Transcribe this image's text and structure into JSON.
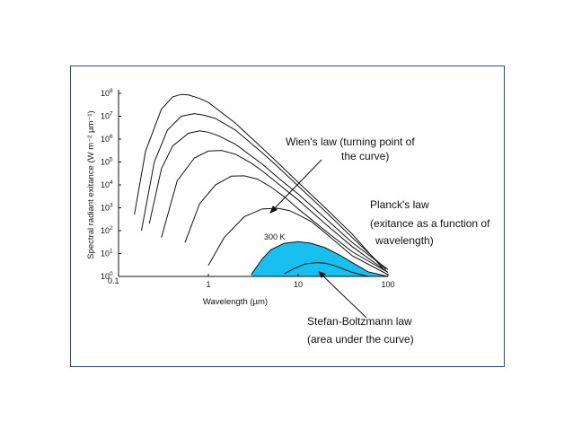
{
  "colors": {
    "frame": "#2b4c9a",
    "fill": "#17c0ef",
    "curve": "#111111"
  },
  "chart_data": {
    "type": "line",
    "xscale": "log",
    "yscale": "log",
    "xlim": [
      0.1,
      100
    ],
    "ylim": [
      1,
      100000000
    ],
    "xlabel": "Wavelength (µm)",
    "ylabel": "Spectral radiant exitance (W m⁻² µm⁻¹)",
    "x_ticks": [
      "0.1",
      "1",
      "10",
      "100"
    ],
    "y_ticks": [
      {
        "base": "10",
        "exp": "0",
        "v": 1
      },
      {
        "base": "10",
        "exp": "1",
        "v": 10
      },
      {
        "base": "10",
        "exp": "2",
        "v": 100
      },
      {
        "base": "10",
        "exp": "3",
        "v": 1000
      },
      {
        "base": "10",
        "exp": "4",
        "v": 10000
      },
      {
        "base": "10",
        "exp": "5",
        "v": 100000
      },
      {
        "base": "10",
        "exp": "6",
        "v": 1000000
      },
      {
        "base": "10",
        "exp": "7",
        "v": 10000000
      },
      {
        "base": "10",
        "exp": "8",
        "v": 100000000
      }
    ],
    "series": [
      {
        "x": [
          0.15,
          0.2,
          0.3,
          0.4,
          0.5,
          0.6,
          0.8,
          1,
          2,
          4,
          6,
          10,
          20,
          40,
          90
        ],
        "y": [
          500,
          300000,
          20000000,
          70000000,
          90000000,
          85000000,
          60000000,
          40000000,
          5000000,
          400000,
          90000,
          13000,
          1000,
          70,
          2
        ]
      },
      {
        "x": [
          0.18,
          0.25,
          0.35,
          0.5,
          0.7,
          0.9,
          1.2,
          2,
          4,
          6,
          10,
          20,
          40,
          95
        ],
        "y": [
          100,
          100000,
          2500000,
          10000000,
          13000000,
          11000000,
          8000000,
          2500000,
          250000,
          60000,
          9000,
          700,
          50,
          2
        ]
      },
      {
        "x": [
          0.22,
          0.3,
          0.4,
          0.6,
          0.8,
          1,
          1.3,
          2,
          4,
          6,
          10,
          20,
          40,
          100
        ],
        "y": [
          200,
          50000,
          500000,
          1800000,
          2300000,
          2000000,
          1400000,
          600000,
          80000,
          20000,
          4000,
          350,
          30,
          2
        ]
      },
      {
        "x": [
          0.3,
          0.45,
          0.7,
          1,
          1.4,
          2,
          3,
          4,
          6,
          10,
          20,
          40,
          100
        ],
        "y": [
          50,
          15000,
          150000,
          300000,
          320000,
          220000,
          90000,
          40000,
          11000,
          2200,
          200,
          20,
          1.5
        ]
      },
      {
        "x": [
          0.55,
          0.8,
          1.2,
          1.8,
          2.5,
          3.5,
          5,
          7,
          10,
          20,
          40,
          100
        ],
        "y": [
          30,
          1500,
          10000,
          24000,
          25000,
          18000,
          8000,
          3000,
          900,
          100,
          12,
          1.5
        ]
      },
      {
        "x": [
          1,
          1.5,
          2.5,
          4,
          6,
          8,
          10,
          14,
          20,
          40,
          100
        ],
        "y": [
          3,
          50,
          400,
          900,
          950,
          750,
          500,
          250,
          80,
          8,
          1.2
        ]
      },
      {
        "x": [
          3,
          4,
          5,
          7,
          10,
          14,
          20,
          30,
          40,
          60,
          100
        ],
        "y": [
          1.2,
          6,
          15,
          28,
          33,
          28,
          18,
          8,
          4,
          1.6,
          1
        ]
      },
      {
        "x": [
          7,
          9,
          12,
          16,
          20,
          25,
          30,
          40,
          60
        ],
        "y": [
          1.3,
          2.2,
          3.5,
          4,
          3.8,
          3,
          2.3,
          1.5,
          1
        ]
      }
    ],
    "filled_series_index": 6,
    "curve_labels": [
      {
        "text": "300 K",
        "series": 6
      }
    ],
    "annotations": [
      {
        "lines": [
          "Wien's law (turning point of",
          "the curve)"
        ]
      },
      {
        "lines": [
          "Planck's law",
          "(exitance as a function of",
          "wavelength)"
        ]
      },
      {
        "lines": [
          "Stefan-Boltzmann law",
          "(area under the curve)"
        ]
      }
    ]
  }
}
